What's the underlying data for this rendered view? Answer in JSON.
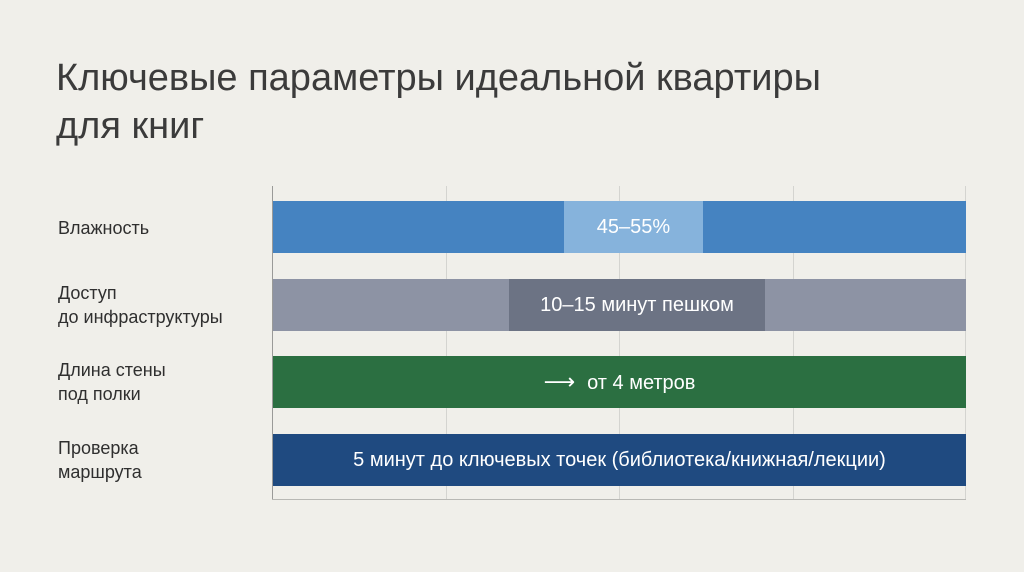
{
  "title_lines": [
    "Ключевые параметры идеальной квартиры",
    "для книг"
  ],
  "colors": {
    "humidity": "#4583c1",
    "humidity_highlight": "#86b3dc",
    "access": "#8d93a4",
    "access_highlight": "#6c7384",
    "wall": "#2b6f41",
    "route": "#1f4a80"
  },
  "chart_data": {
    "type": "bar",
    "title": "Ключевые параметры идеальной квартиры для книг",
    "orientation": "horizontal",
    "categories": [
      "Влажность",
      "Доступ до инфраструктуры",
      "Длина стены под полки",
      "Проверка маршрута"
    ],
    "category_lines": [
      [
        "Влажность"
      ],
      [
        "Доступ",
        "до инфраструктуры"
      ],
      [
        "Длина стены",
        "под полки"
      ],
      [
        "Проверка",
        "маршрута"
      ]
    ],
    "bar_labels": [
      "45–55%",
      "10–15 минут пешком",
      "от 4 метров",
      "5 минут до ключевых точек (библиотека/книжная/лекции)"
    ],
    "bar_icons": [
      "",
      "",
      "arrow-right-icon",
      ""
    ],
    "highlight_ranges": [
      [
        0.42,
        0.62
      ],
      [
        0.34,
        0.71
      ],
      null,
      null
    ],
    "grid": true
  }
}
